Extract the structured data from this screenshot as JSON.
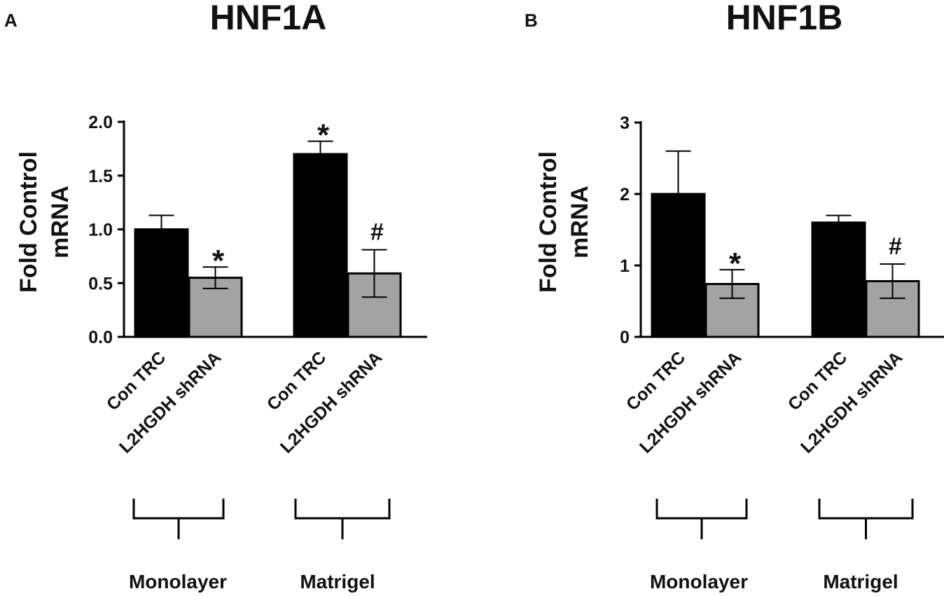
{
  "chart_data": [
    {
      "panel_label": "A",
      "type": "bar",
      "title": "HNF1A",
      "ylabel": "Fold Control mRNA",
      "ylabel_lines": [
        "Fold Control",
        "mRNA"
      ],
      "ylim": [
        0,
        2
      ],
      "yticks": [
        "0.0",
        "0.5",
        "1.0",
        "1.5",
        "2.0"
      ],
      "ytick_values": [
        0,
        0.5,
        1.0,
        1.5,
        2.0
      ],
      "groups": [
        "Monolayer",
        "Matrigel"
      ],
      "categories": [
        "Con TRC",
        "L2HGDH shRNA",
        "Con TRC",
        "L2HGDH shRNA"
      ],
      "series": [
        {
          "values": [
            1.0,
            0.55,
            1.7,
            0.59
          ],
          "error": [
            0.13,
            0.1,
            0.12,
            0.22
          ]
        }
      ],
      "bar_colors": [
        "#000000",
        "#a3a3a3",
        "#000000",
        "#a3a3a3"
      ],
      "annotations": [
        "",
        "*",
        "*",
        "#"
      ]
    },
    {
      "panel_label": "B",
      "type": "bar",
      "title": "HNF1B",
      "ylabel": "Fold Control mRNA",
      "ylabel_lines": [
        "Fold Control",
        "mRNA"
      ],
      "ylim": [
        0,
        3
      ],
      "yticks": [
        "0",
        "1",
        "2",
        "3"
      ],
      "ytick_values": [
        0,
        1,
        2,
        3
      ],
      "groups": [
        "Monolayer",
        "Matrigel"
      ],
      "categories": [
        "Con TRC",
        "L2HGDH shRNA",
        "Con TRC",
        "L2HGDH shRNA"
      ],
      "series": [
        {
          "values": [
            2.0,
            0.74,
            1.6,
            0.78
          ],
          "error": [
            0.6,
            0.2,
            0.1,
            0.24
          ]
        }
      ],
      "bar_colors": [
        "#000000",
        "#a3a3a3",
        "#000000",
        "#a3a3a3"
      ],
      "annotations": [
        "",
        "*",
        "",
        "#"
      ]
    }
  ]
}
